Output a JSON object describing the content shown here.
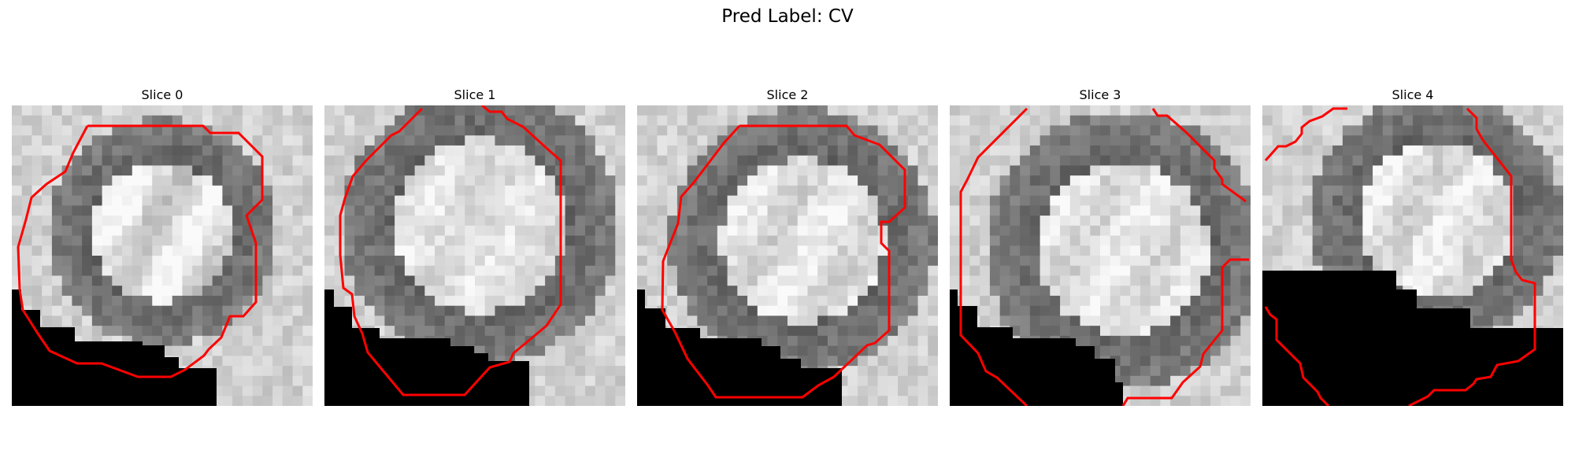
{
  "figure": {
    "title": "Pred Label: CV"
  },
  "panels": [
    {
      "title": "Slice 0"
    },
    {
      "title": "Slice 1"
    },
    {
      "title": "Slice 2"
    },
    {
      "title": "Slice 3"
    },
    {
      "title": "Slice 4"
    }
  ],
  "colors": {
    "contour": "#ff0000",
    "mask": "#000000"
  }
}
